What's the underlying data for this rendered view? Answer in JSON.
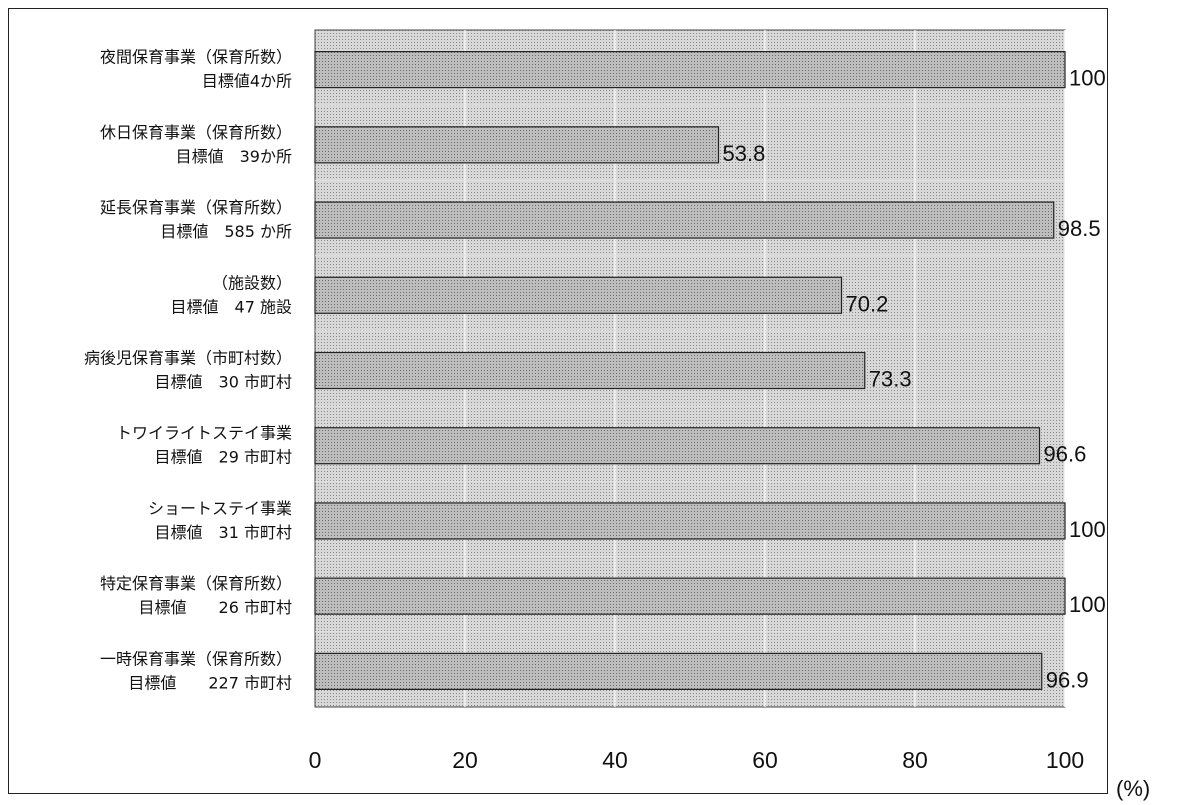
{
  "chart_data": {
    "type": "bar",
    "orientation": "horizontal",
    "categories": [
      [
        "夜間保育事業（保育所数）",
        "目標値4か所"
      ],
      [
        "休日保育事業（保育所数）",
        "目標値　39か所"
      ],
      [
        "延長保育事業（保育所数）",
        "目標値　585 か所"
      ],
      [
        "（施設数）",
        "目標値　47 施設"
      ],
      [
        "病後児保育事業（市町村数）",
        "目標値　30 市町村"
      ],
      [
        "トワイライトステイ事業",
        "目標値　29 市町村"
      ],
      [
        "ショートステイ事業",
        "目標値　31 市町村"
      ],
      [
        "特定保育事業（保育所数）",
        "目標値　　26 市町村"
      ],
      [
        "一時保育事業（保育所数）",
        "目標値　　227 市町村"
      ]
    ],
    "values": [
      100,
      53.8,
      98.5,
      70.2,
      73.3,
      96.6,
      100,
      100,
      96.9
    ],
    "value_labels": [
      "100",
      "53.8",
      "98.5",
      "70.2",
      "73.3",
      "96.6",
      "100",
      "100",
      "96.9"
    ],
    "xlim": [
      0,
      100
    ],
    "xticks": [
      "0",
      "20",
      "40",
      "60",
      "80",
      "100"
    ],
    "unit": "(%)",
    "grid": true,
    "colors": {
      "plot_background": "#cfcfcf",
      "bar_fill": "#b4b4b4",
      "bar_stroke": "#222222",
      "grid": "#ffffff"
    }
  }
}
